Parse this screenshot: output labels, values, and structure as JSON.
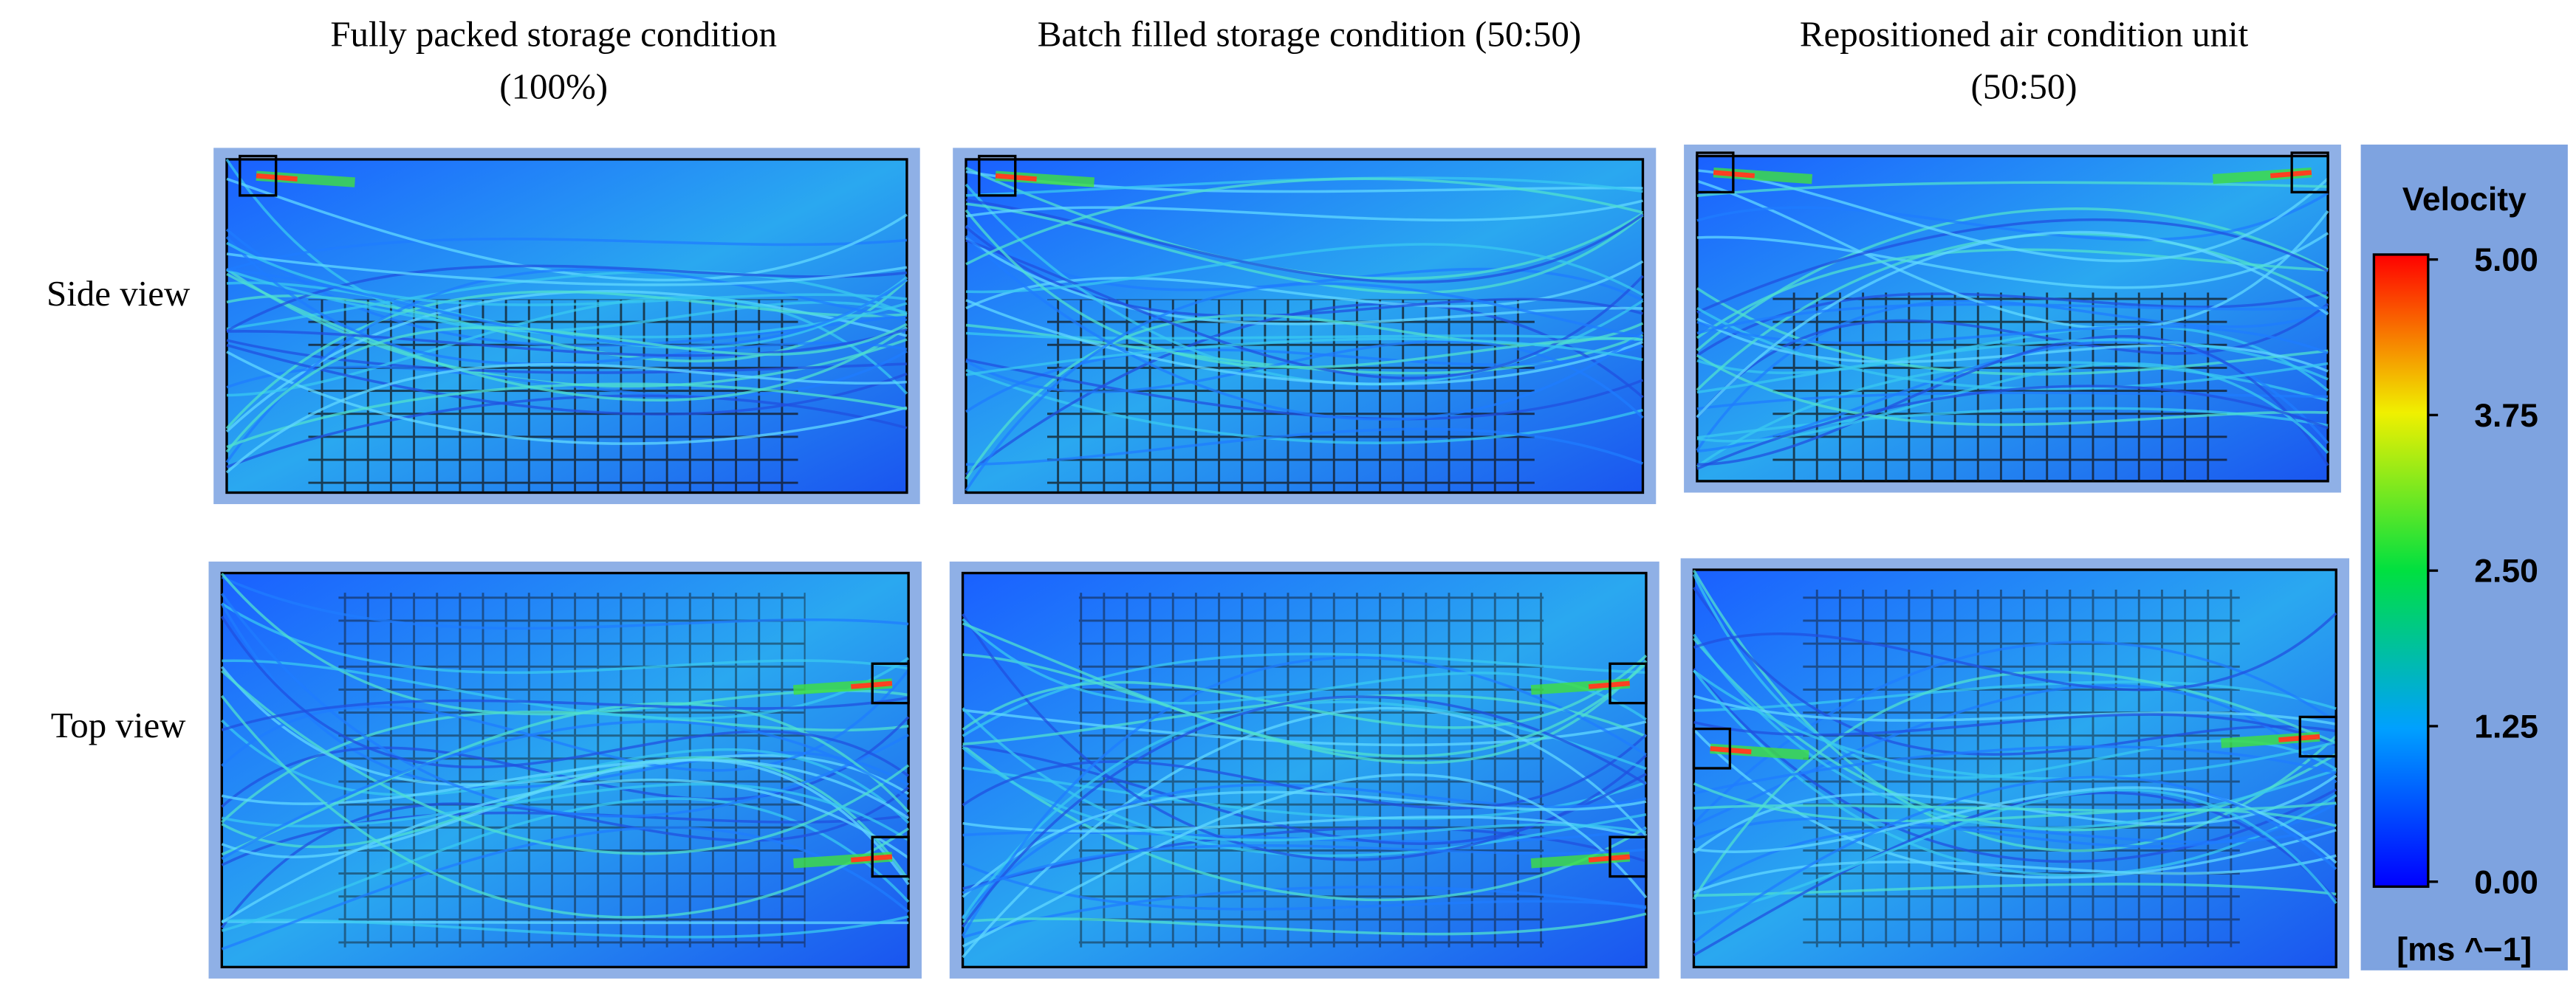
{
  "column_titles": [
    [
      "Fully packed storage condition",
      "(100%)"
    ],
    [
      "Batch filled storage condition (50:50)"
    ],
    [
      "Repositioned air condition unit",
      "(50:50)"
    ]
  ],
  "row_labels": [
    "Side view",
    "Top view"
  ],
  "colorbar": {
    "title": "Velocity",
    "unit": "[ms ^−1]",
    "lim": [
      0,
      5
    ],
    "ticks": [
      {
        "value": 0,
        "label": "0.00"
      },
      {
        "value": 1.25,
        "label": "1.25"
      },
      {
        "value": 2.5,
        "label": "2.50"
      },
      {
        "value": 3.75,
        "label": "3.75"
      },
      {
        "value": 5,
        "label": "5.00"
      }
    ]
  }
}
